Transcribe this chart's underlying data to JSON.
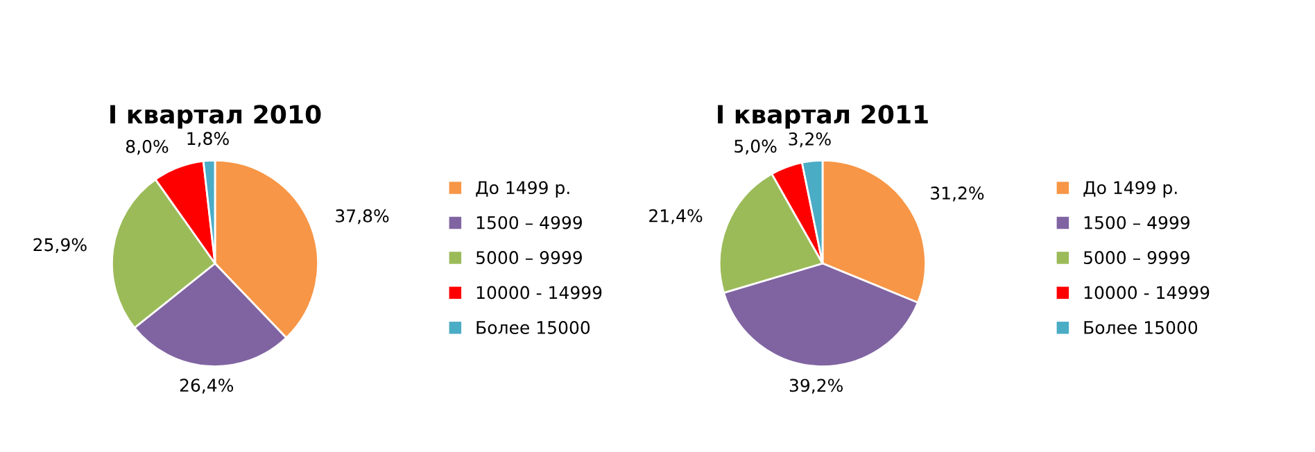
{
  "chart_data": [
    {
      "type": "pie",
      "title": "I квартал 2010",
      "categories": [
        "До 1499 р.",
        "1500 – 4999",
        "5000 – 9999",
        "10000 - 14999",
        "Более 15000"
      ],
      "values": [
        37.8,
        26.4,
        25.9,
        8.0,
        1.8
      ],
      "value_labels": [
        "37,8%",
        "26,4%",
        "25,9%",
        "8,0%",
        "1,8%"
      ],
      "colors": [
        "#f79646",
        "#8064a2",
        "#9bbb59",
        "#ff0000",
        "#4bacc6"
      ],
      "legend": "right"
    },
    {
      "type": "pie",
      "title": "I квартал 2011",
      "categories": [
        "До 1499 р.",
        "1500 – 4999",
        "5000 – 9999",
        "10000 - 14999",
        "Более 15000"
      ],
      "values": [
        31.2,
        39.2,
        21.4,
        5.0,
        3.2
      ],
      "value_labels": [
        "31,2%",
        "39,2%",
        "21,4%",
        "5,0%",
        "3,2%"
      ],
      "colors": [
        "#f79646",
        "#8064a2",
        "#9bbb59",
        "#ff0000",
        "#4bacc6"
      ],
      "legend": "right"
    }
  ]
}
